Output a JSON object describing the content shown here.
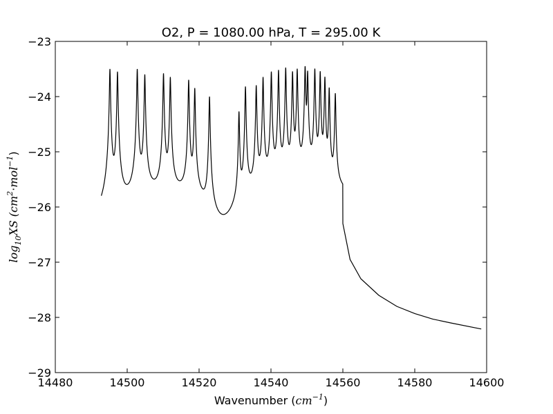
{
  "chart_data": {
    "type": "line",
    "title": "O2, P = 1080.00 hPa, T = 295.00 K",
    "xlabel": {
      "text": "Wavenumber (",
      "unit_base": "cm",
      "unit_exp": "−1",
      "close": ")"
    },
    "ylabel": {
      "prefix": "log",
      "sub": "10",
      "var": "XS (",
      "unit1": "cm",
      "unit1_exp": "2",
      "dot": "·",
      "unit2": "mol",
      "unit2_exp": "−1",
      "close": ")"
    },
    "xlim": [
      14480,
      14600
    ],
    "ylim": [
      -29,
      -23
    ],
    "x_ticks": [
      14480,
      14500,
      14520,
      14540,
      14560,
      14580,
      14600
    ],
    "x_tick_labels": [
      "14480",
      "14500",
      "14520",
      "14540",
      "14560",
      "14580",
      "14600"
    ],
    "y_ticks": [
      -29,
      -28,
      -27,
      -26,
      -25,
      -24,
      -23
    ],
    "y_tick_labels": [
      "−29",
      "−28",
      "−27",
      "−26",
      "−25",
      "−24",
      "−23"
    ],
    "grid": false,
    "line_color": "#000000",
    "x_range": [
      14492.8,
      14598.5
    ],
    "peaks": [
      {
        "x": 14495.2,
        "y": -23.5
      },
      {
        "x": 14497.3,
        "y": -23.55
      },
      {
        "x": 14502.8,
        "y": -23.5
      },
      {
        "x": 14504.9,
        "y": -23.6
      },
      {
        "x": 14510.1,
        "y": -23.58
      },
      {
        "x": 14512.0,
        "y": -23.65
      },
      {
        "x": 14517.1,
        "y": -23.7
      },
      {
        "x": 14518.8,
        "y": -23.85
      },
      {
        "x": 14522.9,
        "y": -24.0
      },
      {
        "x": 14531.1,
        "y": -24.28
      },
      {
        "x": 14532.9,
        "y": -23.82
      },
      {
        "x": 14535.9,
        "y": -23.8
      },
      {
        "x": 14537.8,
        "y": -23.65
      },
      {
        "x": 14540.1,
        "y": -23.55
      },
      {
        "x": 14542.1,
        "y": -23.52
      },
      {
        "x": 14544.1,
        "y": -23.48
      },
      {
        "x": 14546.0,
        "y": -23.55
      },
      {
        "x": 14547.3,
        "y": -23.5
      },
      {
        "x": 14549.5,
        "y": -23.45
      },
      {
        "x": 14550.2,
        "y": -23.55
      },
      {
        "x": 14552.2,
        "y": -23.5
      },
      {
        "x": 14553.7,
        "y": -23.55
      },
      {
        "x": 14555.0,
        "y": -23.65
      },
      {
        "x": 14556.2,
        "y": -23.85
      },
      {
        "x": 14557.9,
        "y": -23.95
      }
    ],
    "tail": [
      {
        "x": 14560,
        "y": -26.3
      },
      {
        "x": 14562,
        "y": -26.95
      },
      {
        "x": 14565,
        "y": -27.3
      },
      {
        "x": 14570,
        "y": -27.6
      },
      {
        "x": 14575,
        "y": -27.8
      },
      {
        "x": 14580,
        "y": -27.93
      },
      {
        "x": 14585,
        "y": -28.03
      },
      {
        "x": 14590,
        "y": -28.1
      },
      {
        "x": 14598.5,
        "y": -28.21
      }
    ]
  }
}
